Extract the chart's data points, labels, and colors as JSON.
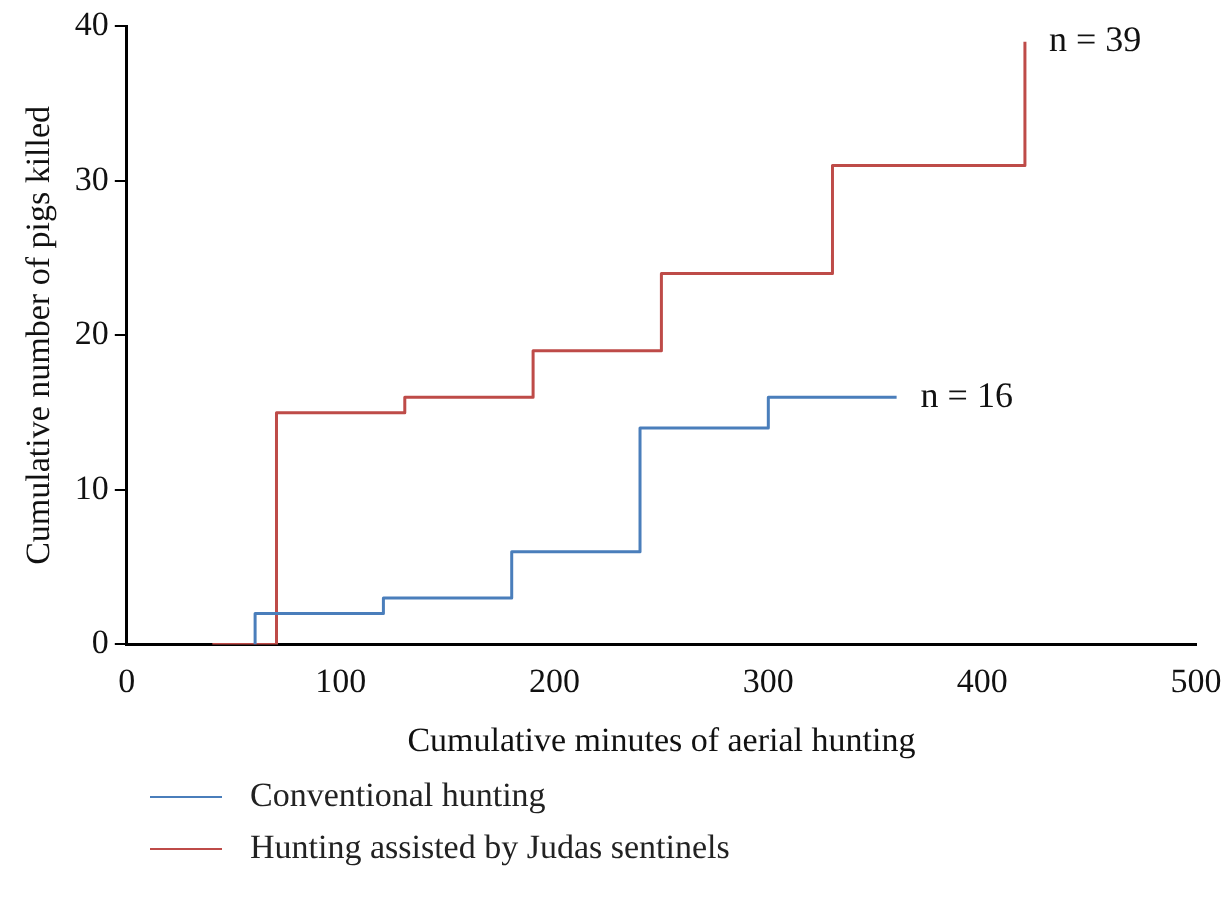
{
  "chart_data": {
    "type": "step",
    "xlabel": "Cumulative minutes of aerial hunting",
    "ylabel": "Cumulative number of pigs killed",
    "series": [
      {
        "name": "Conventional hunting",
        "color": "#4a7ebb",
        "x": [
          60,
          60,
          120,
          180,
          240,
          300,
          360
        ],
        "values": [
          0,
          2,
          3,
          6,
          14,
          16,
          16
        ]
      },
      {
        "name": "Hunting assisted by Judas sentinels",
        "color": "#be4b48",
        "x": [
          40,
          70,
          130,
          190,
          250,
          330,
          420
        ],
        "values": [
          0,
          15,
          16,
          19,
          24,
          31,
          39
        ]
      }
    ],
    "annotations": [
      {
        "text": "n = 39",
        "x": 420,
        "y": 39
      },
      {
        "text": "n = 16",
        "x": 360,
        "y": 16
      }
    ],
    "xlim": [
      0,
      500
    ],
    "xticks": [
      0,
      100,
      200,
      300,
      400,
      500
    ],
    "ylim": [
      0,
      40
    ],
    "yticks": [
      0,
      10,
      20,
      30,
      40
    ],
    "grid": false,
    "legend": "bottom",
    "marker": "none",
    "line_style": "solid"
  }
}
